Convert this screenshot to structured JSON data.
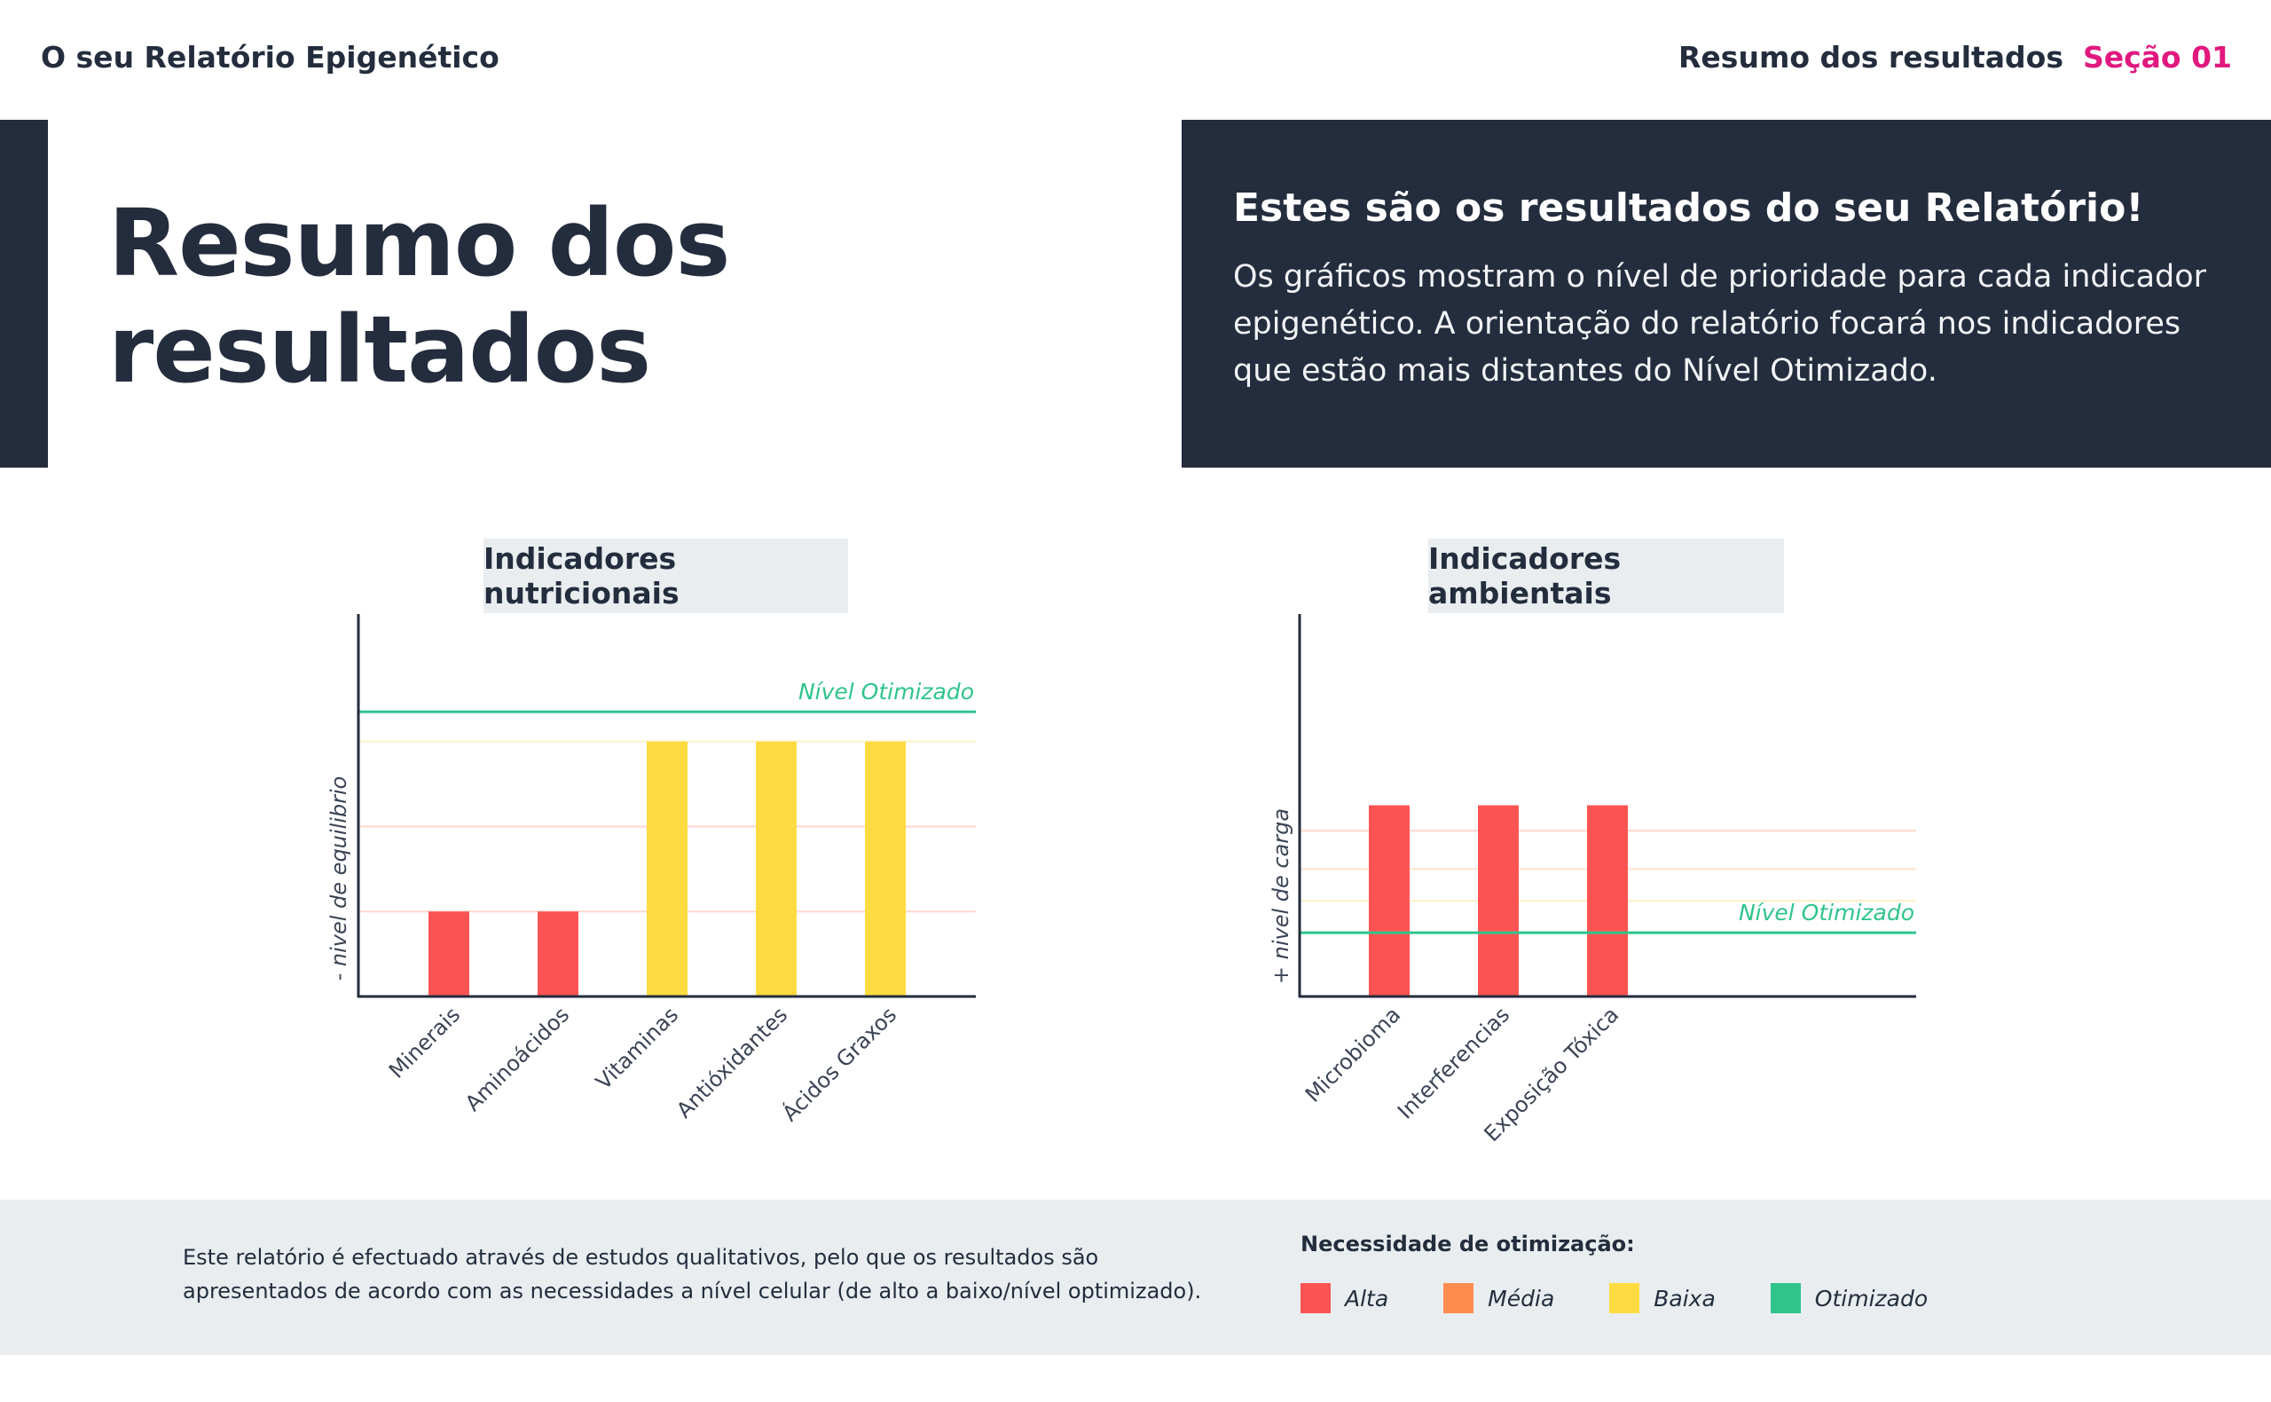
{
  "header": {
    "brand": "O seu Relatório Epigenético",
    "breadcrumb": "Resumo dos resultados",
    "section": "Seção 01"
  },
  "hero": {
    "title_line1": "Resumo dos",
    "title_line2": "resultados"
  },
  "info": {
    "heading": "Estes são os resultados do seu Relatório!",
    "body": "Os gráficos mostram o nível de prioridade para cada indicador epigenético. A orientação do relatório focará nos indicadores que estão mais distantes do Nível Otimizado."
  },
  "colors": {
    "alta": "#fd5453",
    "media": "#fe8c4f",
    "baixa": "#fedb41",
    "otimizado": "#2fc48b",
    "dark": "#232d3d",
    "accent": "#e1197f"
  },
  "chart_data": [
    {
      "type": "bar",
      "title": "Indicadores nutricionais",
      "ylabel": "- nivel de equilibrio",
      "categories": [
        "Minerais",
        "Aminoácidos",
        "Vitaminas",
        "Antióxidantes",
        "Ácidos Graxos"
      ],
      "values": [
        1,
        1,
        3,
        3,
        3
      ],
      "bar_colors": [
        "#fd5453",
        "#fd5453",
        "#fedb41",
        "#fedb41",
        "#fedb41"
      ],
      "ylim": [
        0,
        4.5
      ],
      "reference_line": {
        "label": "Nível Otimizado",
        "value": 3.35
      },
      "gridlines": [
        1,
        2,
        3
      ],
      "grid": true
    },
    {
      "type": "bar",
      "title": "Indicadores ambientais",
      "ylabel": "+ nivel de carga",
      "categories": [
        "Microbioma",
        "Interferencias",
        "Exposição Tóxica",
        "",
        ""
      ],
      "values": [
        3,
        3,
        3,
        null,
        null
      ],
      "bar_colors": [
        "#fd5453",
        "#fd5453",
        "#fd5453",
        "#fd5453",
        "#fd5453"
      ],
      "ylim": [
        0,
        6
      ],
      "reference_line": {
        "label": "Nível Otimizado",
        "value": 1
      },
      "gridlines": [
        1.5,
        2,
        2.6
      ],
      "grid": true
    }
  ],
  "footer": {
    "disclaimer": "Este relatório é efectuado através de estudos qualitativos, pelo que os resultados são apresentados de acordo com as necessidades a nível celular (de alto a baixo/nível optimizado).",
    "legend_title": "Necessidade de otimização:",
    "legend": [
      {
        "label": "Alta",
        "color": "#fd5453"
      },
      {
        "label": "Média",
        "color": "#fe8c4f"
      },
      {
        "label": "Baixa",
        "color": "#fedb41"
      },
      {
        "label": "Otimizado",
        "color": "#2fc48b"
      }
    ]
  }
}
